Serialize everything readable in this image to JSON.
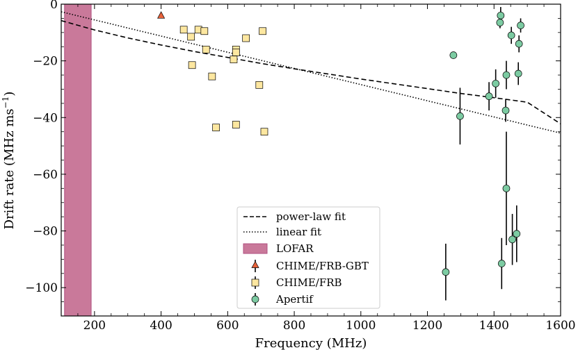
{
  "chart_data": {
    "type": "scatter",
    "xlabel": "Frequency (MHz)",
    "ylabel": "Drift rate (MHz ms",
    "ylabel_exponent": "−1",
    "ylabel_close": ")",
    "xlim": [
      100,
      1600
    ],
    "ylim": [
      -110,
      0
    ],
    "xticks": [
      200,
      400,
      600,
      800,
      1000,
      1200,
      1400,
      1600
    ],
    "xtick_labels": [
      "200",
      "400",
      "600",
      "800",
      "1000",
      "1200",
      "1400",
      "1600"
    ],
    "yticks": [
      0,
      -20,
      -40,
      -60,
      -80,
      -100
    ],
    "ytick_labels": [
      "0",
      "−20",
      "−40",
      "−60",
      "−80",
      "−100"
    ],
    "legend_position": "bottom-center",
    "lofar_band": {
      "name": "LOFAR",
      "x0": 110,
      "x1": 190,
      "color": "#c9799a"
    },
    "fits": [
      {
        "name": "power-law fit",
        "style": "dashed",
        "color": "#000000",
        "x": [
          100,
          200,
          300,
          400,
          500,
          600,
          700,
          800,
          900,
          1000,
          1100,
          1200,
          1300,
          1400,
          1500,
          1600
        ],
        "y": [
          -5.8,
          -9.1,
          -11.9,
          -14.4,
          -16.7,
          -18.8,
          -20.9,
          -22.8,
          -24.6,
          -26.4,
          -28.1,
          -29.8,
          -31.5,
          -33.0,
          -34.6,
          -42.2
        ]
      },
      {
        "name": "linear fit",
        "style": "dotted",
        "color": "#000000",
        "x": [
          100,
          1600
        ],
        "y": [
          -2.7,
          -45.5
        ]
      }
    ],
    "series": [
      {
        "name": "CHIME/FRB-GBT",
        "marker": "triangle",
        "color": "#e8623a",
        "points": [
          {
            "x": 400,
            "y": -4
          }
        ]
      },
      {
        "name": "CHIME/FRB",
        "marker": "square",
        "color": "#fde7a0",
        "points": [
          {
            "x": 468,
            "y": -9
          },
          {
            "x": 490,
            "y": -11.5
          },
          {
            "x": 512,
            "y": -9
          },
          {
            "x": 530,
            "y": -9.5
          },
          {
            "x": 535,
            "y": -16
          },
          {
            "x": 655,
            "y": -12
          },
          {
            "x": 705,
            "y": -9.5
          },
          {
            "x": 625,
            "y": -16
          },
          {
            "x": 625,
            "y": -17
          },
          {
            "x": 618,
            "y": -19.5
          },
          {
            "x": 493,
            "y": -21.5
          },
          {
            "x": 553,
            "y": -25.5
          },
          {
            "x": 695,
            "y": -28.5
          },
          {
            "x": 565,
            "y": -43.5
          },
          {
            "x": 625,
            "y": -42.5
          },
          {
            "x": 710,
            "y": -45
          }
        ]
      },
      {
        "name": "Apertif",
        "marker": "circle",
        "color": "#7ccba2",
        "points": [
          {
            "x": 1420,
            "y": -4,
            "yerr": 3
          },
          {
            "x": 1418,
            "y": -6.5,
            "yerr": 2
          },
          {
            "x": 1480,
            "y": -7.5,
            "yerr": 2.5
          },
          {
            "x": 1452,
            "y": -11,
            "yerr": 3
          },
          {
            "x": 1475,
            "y": -14,
            "yerr": 3
          },
          {
            "x": 1278,
            "y": -18,
            "yerr": 1
          },
          {
            "x": 1473,
            "y": -24.5,
            "yerr": 4
          },
          {
            "x": 1437,
            "y": -25,
            "yerr": 5
          },
          {
            "x": 1405,
            "y": -28,
            "yerr": 5
          },
          {
            "x": 1385,
            "y": -32.5,
            "yerr": 5
          },
          {
            "x": 1435,
            "y": -37.5,
            "yerr": 4
          },
          {
            "x": 1298,
            "y": -39.5,
            "yerr": 10
          },
          {
            "x": 1437,
            "y": -65,
            "yerr": 20
          },
          {
            "x": 1468,
            "y": -81,
            "yerr": 10
          },
          {
            "x": 1455,
            "y": -83,
            "yerr": 9
          },
          {
            "x": 1423,
            "y": -91.5,
            "yerr": 9
          },
          {
            "x": 1255,
            "y": -94.5,
            "yerr": 10
          }
        ]
      }
    ],
    "legend": {
      "entries": [
        "power-law fit",
        "linear fit",
        "LOFAR",
        "CHIME/FRB-GBT",
        "CHIME/FRB",
        "Apertif"
      ]
    }
  }
}
